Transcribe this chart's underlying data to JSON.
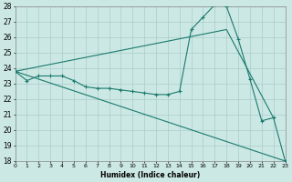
{
  "xlabel": "Humidex (Indice chaleur)",
  "bg_color": "#cce8e4",
  "grid_color": "#aaccca",
  "line_color": "#1a7a6e",
  "xlim": [
    0,
    23
  ],
  "ylim": [
    18,
    28
  ],
  "yticks": [
    18,
    19,
    20,
    21,
    22,
    23,
    24,
    25,
    26,
    27,
    28
  ],
  "xticks": [
    0,
    1,
    2,
    3,
    4,
    5,
    6,
    7,
    8,
    9,
    10,
    11,
    12,
    13,
    14,
    15,
    16,
    17,
    18,
    19,
    20,
    21,
    22,
    23
  ],
  "line1_x": [
    0,
    1,
    2,
    3,
    4,
    5,
    6,
    7,
    8,
    9,
    10,
    11,
    12,
    13,
    14,
    15,
    16,
    17,
    18,
    19,
    20,
    21,
    22,
    23
  ],
  "line1_y": [
    23.8,
    23.2,
    23.5,
    23.5,
    23.5,
    23.2,
    22.8,
    22.7,
    22.7,
    22.6,
    22.5,
    22.4,
    22.3,
    22.3,
    22.5,
    26.5,
    27.3,
    28.1,
    28.0,
    25.9,
    23.3,
    20.6,
    20.8,
    18.0
  ],
  "line2_x": [
    0,
    18,
    22
  ],
  "line2_y": [
    23.8,
    26.5,
    20.8
  ],
  "line3_x": [
    0,
    23
  ],
  "line3_y": [
    23.8,
    18.0
  ]
}
